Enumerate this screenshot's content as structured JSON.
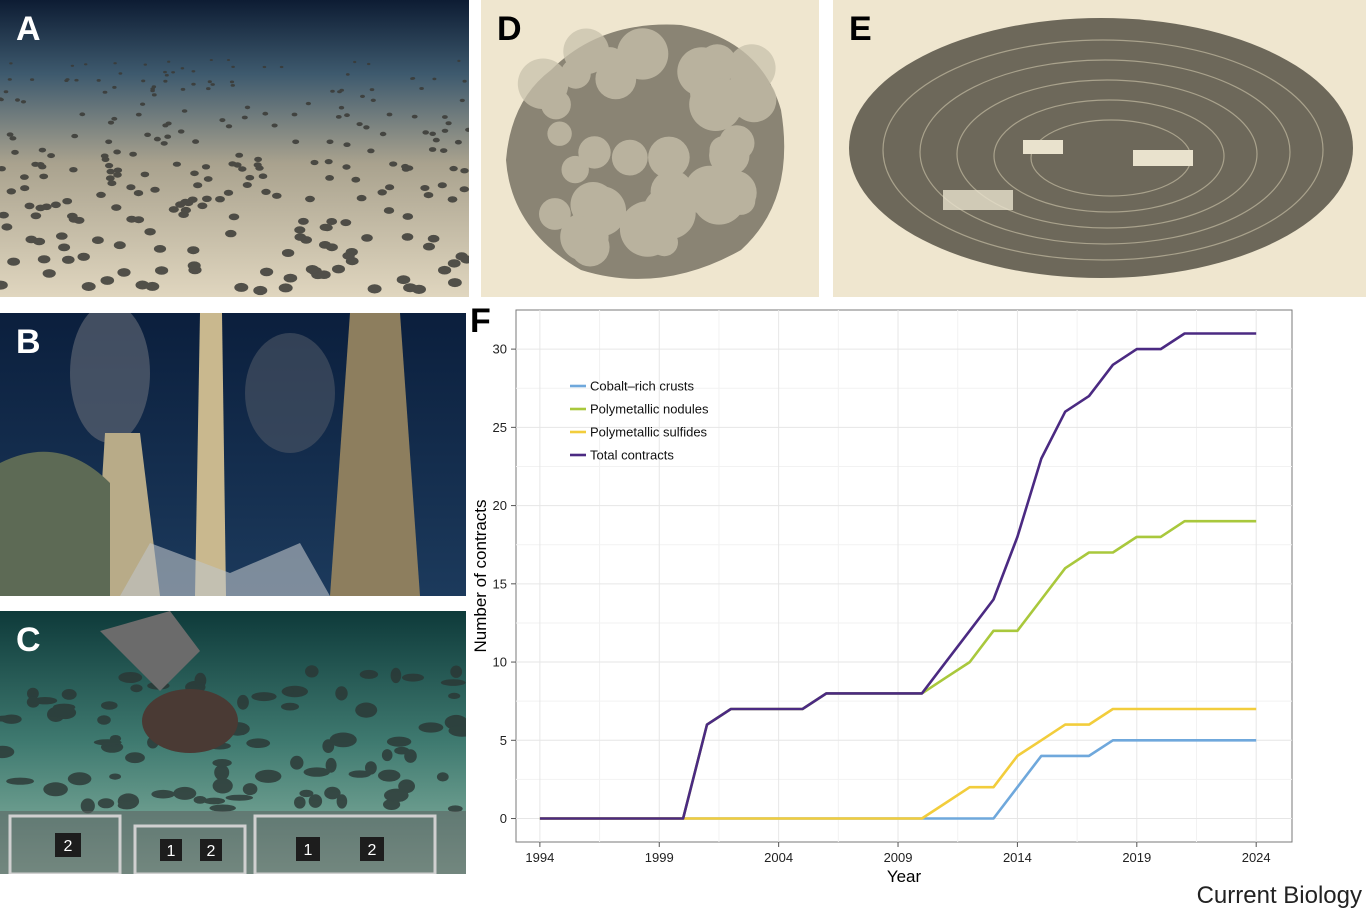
{
  "panels": {
    "A": {
      "letter": "A"
    },
    "B": {
      "letter": "B"
    },
    "C": {
      "letter": "C",
      "basket_labels": [
        "2",
        "1",
        "2",
        "1",
        "2"
      ]
    },
    "D": {
      "letter": "D"
    },
    "E": {
      "letter": "E"
    },
    "F": {
      "letter": "F"
    }
  },
  "journal": "Current Biology",
  "colors": {
    "cobalt": "#6fa8dc",
    "nodules": "#a9c83c",
    "sulfides": "#f2cd3c",
    "total": "#4b2a82"
  },
  "chart_data": {
    "type": "line",
    "title": "",
    "xlabel": "Year",
    "ylabel": "Number of contracts",
    "xlim": [
      1993,
      2025.5
    ],
    "ylim": [
      -1.5,
      32.5
    ],
    "xticks": [
      1994,
      1999,
      2004,
      2009,
      2014,
      2019,
      2024
    ],
    "yticks": [
      0,
      5,
      10,
      15,
      20,
      25,
      30
    ],
    "grid": true,
    "legend_position": "top-left",
    "x": [
      1994,
      1995,
      1996,
      1997,
      1998,
      1999,
      2000,
      2001,
      2002,
      2003,
      2004,
      2005,
      2006,
      2007,
      2008,
      2009,
      2010,
      2011,
      2012,
      2013,
      2014,
      2015,
      2016,
      2017,
      2018,
      2019,
      2020,
      2021,
      2022,
      2023,
      2024
    ],
    "series": [
      {
        "name": "Cobalt–rich crusts",
        "color": "#6fa8dc",
        "values": [
          0,
          0,
          0,
          0,
          0,
          0,
          0,
          0,
          0,
          0,
          0,
          0,
          0,
          0,
          0,
          0,
          0,
          0,
          0,
          0,
          2,
          4,
          4,
          4,
          5,
          5,
          5,
          5,
          5,
          5,
          5
        ]
      },
      {
        "name": "Polymetallic nodules",
        "color": "#a9c83c",
        "values": [
          0,
          0,
          0,
          0,
          0,
          0,
          0,
          6,
          7,
          7,
          7,
          7,
          8,
          8,
          8,
          8,
          8,
          9,
          10,
          12,
          12,
          14,
          16,
          17,
          17,
          18,
          18,
          19,
          19,
          19,
          19
        ]
      },
      {
        "name": "Polymetallic sulfides",
        "color": "#f2cd3c",
        "values": [
          0,
          0,
          0,
          0,
          0,
          0,
          0,
          0,
          0,
          0,
          0,
          0,
          0,
          0,
          0,
          0,
          0,
          1,
          2,
          2,
          4,
          5,
          6,
          6,
          7,
          7,
          7,
          7,
          7,
          7,
          7
        ]
      },
      {
        "name": "Total contracts",
        "color": "#4b2a82",
        "values": [
          0,
          0,
          0,
          0,
          0,
          0,
          0,
          6,
          7,
          7,
          7,
          7,
          8,
          8,
          8,
          8,
          8,
          10,
          12,
          14,
          18,
          23,
          26,
          27,
          29,
          30,
          30,
          31,
          31,
          31,
          31
        ]
      }
    ]
  }
}
